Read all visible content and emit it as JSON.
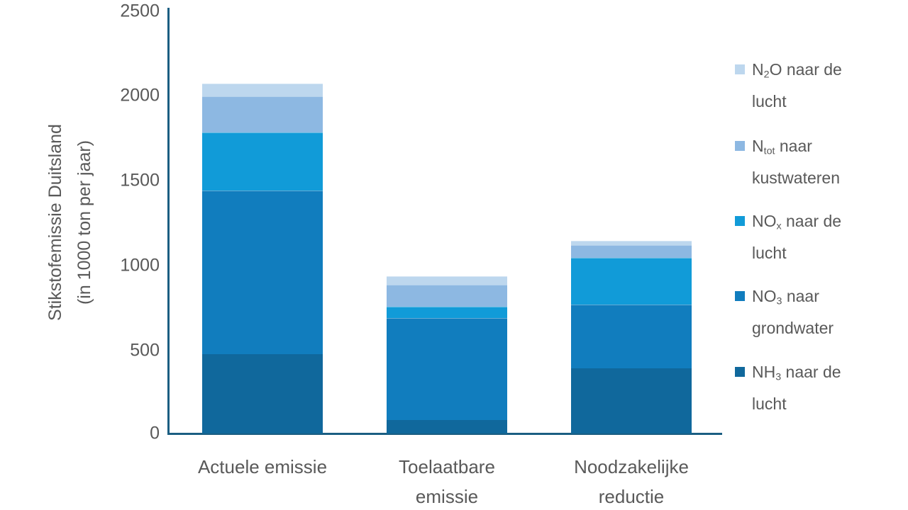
{
  "colors": {
    "axis": "#1b5e82",
    "text": "#595959",
    "background": "#ffffff"
  },
  "y_axis": {
    "title_line1": "Stikstofemissie Duitsland",
    "title_line2": "(in 1000 ton per jaar)",
    "ticks": [
      "2500",
      "2000",
      "1500",
      "1000",
      "500",
      "0"
    ]
  },
  "categories": [
    {
      "line1": "Actuele emissie",
      "line2": ""
    },
    {
      "line1": "Toelaatbare",
      "line2": "emissie"
    },
    {
      "line1": "Noodzakelijke",
      "line2": "reductie"
    }
  ],
  "legend": [
    {
      "formula_prefix": "N",
      "formula_sub": "2",
      "line1_rest": "O naar de",
      "line2": "lucht",
      "color": "#bdd7ee"
    },
    {
      "formula_prefix": "N",
      "formula_sub": "tot",
      "line1_rest": " naar",
      "line2": "kustwateren",
      "color": "#8db8e2"
    },
    {
      "formula_prefix": "NO",
      "formula_sub": "x",
      "line1_rest": " naar de",
      "line2": "lucht",
      "color": "#119bd8"
    },
    {
      "formula_prefix": "NO",
      "formula_sub": "3",
      "line1_rest": " naar",
      "line2": "grondwater",
      "color": "#117dbe"
    },
    {
      "formula_prefix": "NH",
      "formula_sub": "3",
      "line1_rest": " naar de",
      "line2": "lucht",
      "color": "#10689c"
    }
  ],
  "chart_data": {
    "type": "bar",
    "stacked": true,
    "title": "",
    "ylabel": "Stikstofemissie Duitsland (in 1000 ton per jaar)",
    "xlabel": "",
    "ylim": [
      0,
      2500
    ],
    "ytick_interval": 500,
    "grid": false,
    "legend_position": "right",
    "categories": [
      "Actuele emissie",
      "Toelaatbare emissie",
      "Noodzakelijke reductie"
    ],
    "stack_order": "bottom-to-top",
    "series": [
      {
        "key": "nh3",
        "name": "NH3 naar de lucht",
        "color": "#10689c",
        "values": [
          465,
          80,
          385
        ]
      },
      {
        "key": "no3",
        "name": "NO3 naar grondwater",
        "color": "#117dbe",
        "values": [
          965,
          600,
          375
        ]
      },
      {
        "key": "nox",
        "name": "NOx naar de lucht",
        "color": "#119bd8",
        "values": [
          340,
          65,
          275
        ]
      },
      {
        "key": "ntot",
        "name": "Ntot naar kustwateren",
        "color": "#8db8e2",
        "values": [
          215,
          130,
          75
        ]
      },
      {
        "key": "n2o",
        "name": "N2O naar de lucht",
        "color": "#bdd7ee",
        "values": [
          75,
          50,
          25
        ]
      }
    ],
    "totals": [
      2060,
      925,
      1135
    ]
  }
}
